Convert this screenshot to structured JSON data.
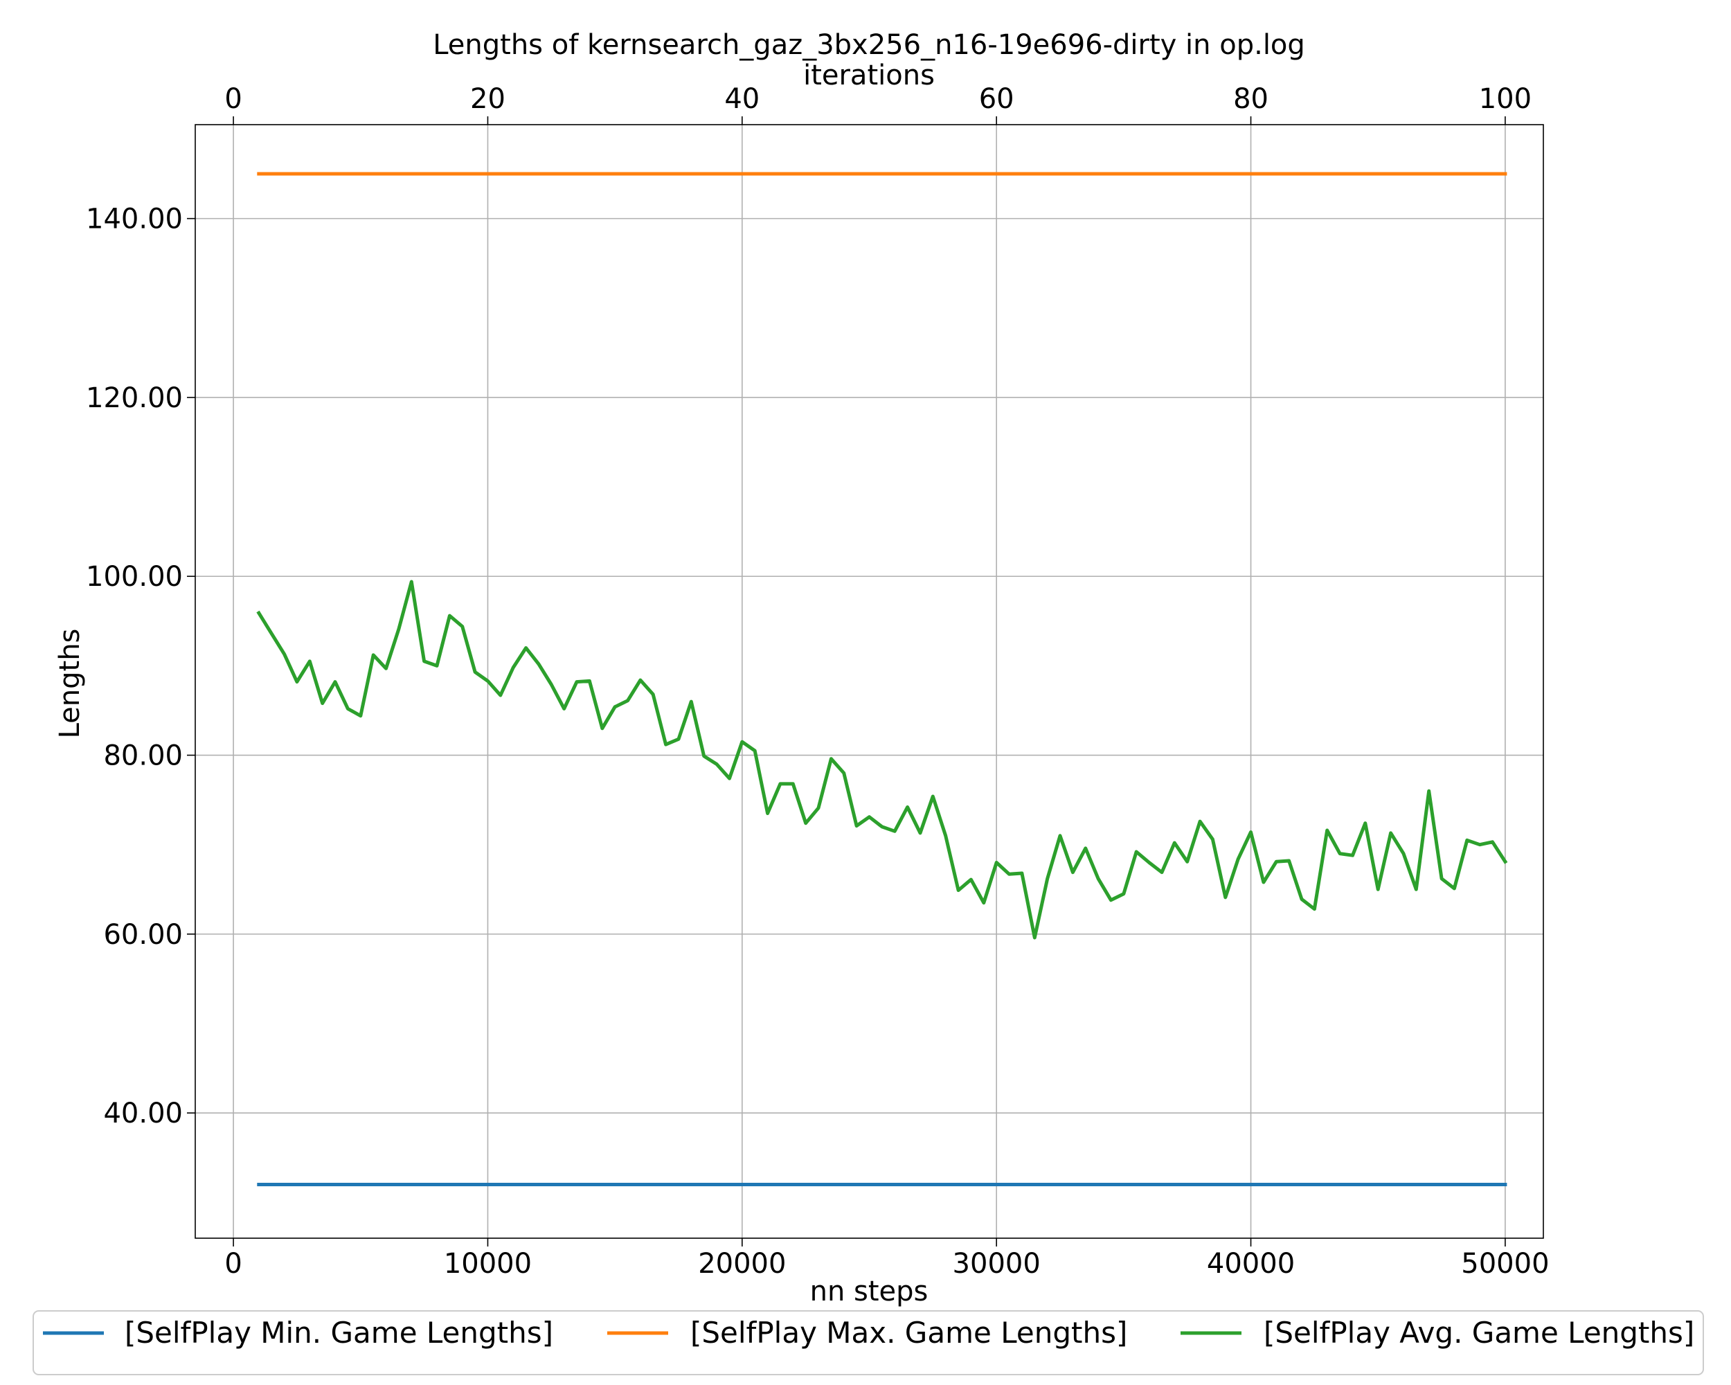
{
  "chart_data": {
    "type": "line",
    "title": "Lengths of kernsearch_gaz_3bx256_n16-19e696-dirty in op.log",
    "xlabel": "nn steps",
    "ylabel": "Lengths",
    "x2label": "iterations",
    "xlim": [
      -1500,
      51500
    ],
    "ylim": [
      26,
      150.5
    ],
    "x2lim": [
      -3,
      103
    ],
    "xticks": [
      0,
      10000,
      20000,
      30000,
      40000,
      50000
    ],
    "xtick_labels": [
      "0",
      "10000",
      "20000",
      "30000",
      "40000",
      "50000"
    ],
    "x2ticks": [
      0,
      20,
      40,
      60,
      80,
      100
    ],
    "x2tick_labels": [
      "0",
      "20",
      "40",
      "60",
      "80",
      "100"
    ],
    "yticks": [
      40,
      60,
      80,
      100,
      120,
      140
    ],
    "ytick_labels": [
      "40.00",
      "60.00",
      "80.00",
      "100.00",
      "120.00",
      "140.00"
    ],
    "grid": true,
    "legend_position": "bottom-center",
    "series": [
      {
        "name": "[SelfPlay Min. Game Lengths]",
        "color": "#1f77b4",
        "x": [
          1000,
          50000
        ],
        "values": [
          32,
          32
        ]
      },
      {
        "name": "[SelfPlay Max. Game Lengths]",
        "color": "#ff7f0e",
        "x": [
          1000,
          50000
        ],
        "values": [
          145,
          145
        ]
      },
      {
        "name": "[SelfPlay Avg. Game Lengths]",
        "color": "#2ca02c",
        "x": [
          1000,
          1500,
          2000,
          2500,
          3000,
          3500,
          4000,
          4500,
          5000,
          5500,
          6000,
          6500,
          7000,
          7500,
          8000,
          8500,
          9000,
          9500,
          10000,
          10500,
          11000,
          11500,
          12000,
          12500,
          13000,
          13500,
          14000,
          14500,
          15000,
          15500,
          16000,
          16500,
          17000,
          17500,
          18000,
          18500,
          19000,
          19500,
          20000,
          20500,
          21000,
          21500,
          22000,
          22500,
          23000,
          23500,
          24000,
          24500,
          25000,
          25500,
          26000,
          26500,
          27000,
          27500,
          28000,
          28500,
          29000,
          29500,
          30000,
          30500,
          31000,
          31500,
          32000,
          32500,
          33000,
          33500,
          34000,
          34500,
          35000,
          35500,
          36000,
          36500,
          37000,
          37500,
          38000,
          38500,
          39000,
          39500,
          40000,
          40500,
          41000,
          41500,
          42000,
          42500,
          43000,
          43500,
          44000,
          44500,
          45000,
          45500,
          46000,
          46500,
          47000,
          47500,
          48000,
          48500,
          49000,
          49500,
          50000
        ],
        "values": [
          95.9,
          93.6,
          91.3,
          88.2,
          90.5,
          85.8,
          88.2,
          85.2,
          84.4,
          91.2,
          89.7,
          94.1,
          99.4,
          90.5,
          90.0,
          95.6,
          94.4,
          89.3,
          88.3,
          86.7,
          89.8,
          92.0,
          90.2,
          87.9,
          85.2,
          88.2,
          88.3,
          83.0,
          85.4,
          86.1,
          88.4,
          86.8,
          81.2,
          81.8,
          86.0,
          79.9,
          79.0,
          77.4,
          81.5,
          80.5,
          73.5,
          76.8,
          76.8,
          72.4,
          74.1,
          79.6,
          78.0,
          72.1,
          73.1,
          72.0,
          71.5,
          74.2,
          71.3,
          75.4,
          71.0,
          64.9,
          66.1,
          63.5,
          68.0,
          66.7,
          66.8,
          59.6,
          66.2,
          71.0,
          66.9,
          69.6,
          66.2,
          63.8,
          64.5,
          69.2,
          68.0,
          66.9,
          70.2,
          68.1,
          72.6,
          70.6,
          64.1,
          68.4,
          71.4,
          65.8,
          68.1,
          68.2,
          63.9,
          62.8,
          71.6,
          69.0,
          68.8,
          72.4,
          65.0,
          71.3,
          69.0,
          65.0,
          76.0,
          66.2,
          65.1,
          70.5,
          70.0,
          70.3,
          68.1
        ]
      }
    ]
  }
}
